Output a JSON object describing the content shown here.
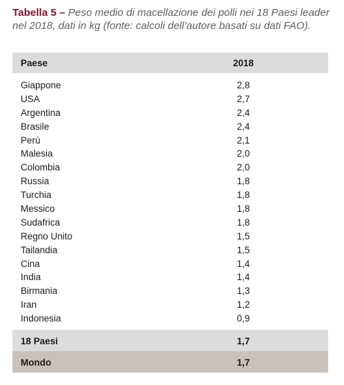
{
  "caption": {
    "label": "Tabella 5 –",
    "text": "Peso medio di macellazione dei polli nei 18 Paesi leader nel 2018, dati in kg (fonte: calcoli dell’autore basati su dati FAO)."
  },
  "table": {
    "headers": [
      "Paese",
      "2018"
    ],
    "rows": [
      {
        "country": "Giappone",
        "value": "2,8"
      },
      {
        "country": "USA",
        "value": "2,7"
      },
      {
        "country": "Argentina",
        "value": "2,4"
      },
      {
        "country": "Brasile",
        "value": "2,4"
      },
      {
        "country": "Perù",
        "value": "2,1"
      },
      {
        "country": "Malesia",
        "value": "2,0"
      },
      {
        "country": "Colombia",
        "value": "2,0"
      },
      {
        "country": "Russia",
        "value": "1,8"
      },
      {
        "country": "Turchia",
        "value": "1,8"
      },
      {
        "country": "Messico",
        "value": "1,8"
      },
      {
        "country": "Sudafrica",
        "value": "1,8"
      },
      {
        "country": "Regno Unito",
        "value": "1,5"
      },
      {
        "country": "Tailandia",
        "value": "1,5"
      },
      {
        "country": "Cina",
        "value": "1,4"
      },
      {
        "country": "India",
        "value": "1,4"
      },
      {
        "country": "Birmania",
        "value": "1,3"
      },
      {
        "country": "Iran",
        "value": "1,2"
      },
      {
        "country": "Indonesia",
        "value": "0,9"
      }
    ],
    "totals": [
      {
        "country": "18 Paesi",
        "value": "1,7"
      },
      {
        "country": "Mondo",
        "value": "1,7"
      }
    ]
  },
  "colors": {
    "caption_label": "#7a1630",
    "header_bg": "#dcdcdc",
    "total_bg": "#dcdcdc",
    "world_bg": "#c9c1bb"
  }
}
